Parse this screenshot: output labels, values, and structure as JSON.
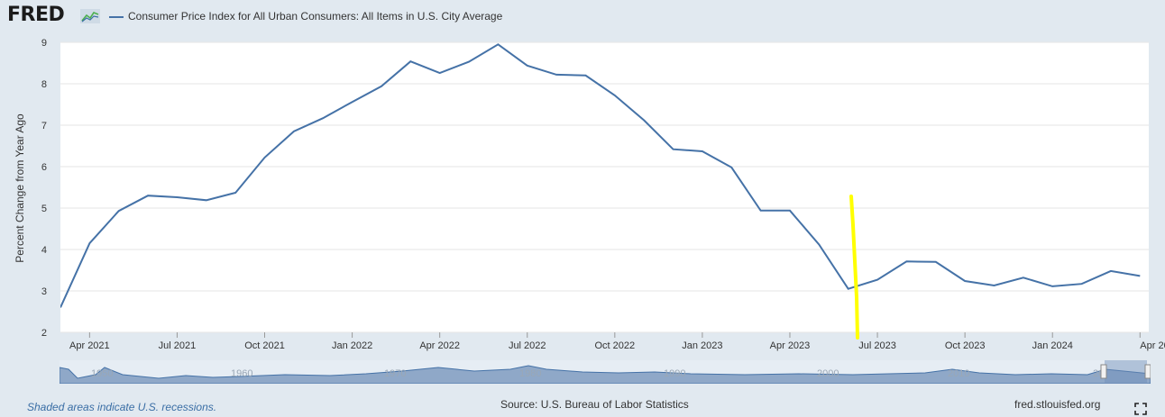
{
  "header": {
    "logo_text": "FRED",
    "series_title": "Consumer Price Index for All Urban Consumers: All Items in U.S. City Average"
  },
  "footer": {
    "recession_note": "Shaded areas indicate U.S. recessions.",
    "source": "Source: U.S. Bureau of Labor Statistics",
    "site": "fred.stlouisfed.org"
  },
  "navigator": {
    "year_labels": [
      "1950",
      "1960",
      "1970",
      "1980",
      "1990",
      "2000",
      "2010",
      "20"
    ]
  },
  "colors": {
    "line": "#4572a7",
    "highlight": "#ffff00",
    "background": "#e1e9f0",
    "plot": "#ffffff"
  },
  "chart_data": {
    "type": "line",
    "title": "",
    "xlabel": "",
    "ylabel": "Percent Change from Year Ago",
    "ylim": [
      2,
      9
    ],
    "y_ticks": [
      2,
      3,
      4,
      5,
      6,
      7,
      8,
      9
    ],
    "x_ticks": [
      "Apr 2021",
      "Jul 2021",
      "Oct 2021",
      "Jan 2022",
      "Apr 2022",
      "Jul 2022",
      "Oct 2022",
      "Jan 2023",
      "Apr 2023",
      "Jul 2023",
      "Oct 2023",
      "Jan 2024",
      "Apr 2024"
    ],
    "grid": true,
    "series": [
      {
        "name": "Consumer Price Index for All Urban Consumers: All Items in U.S. City Average",
        "x": [
          "2021-03",
          "2021-04",
          "2021-05",
          "2021-06",
          "2021-07",
          "2021-08",
          "2021-09",
          "2021-10",
          "2021-11",
          "2021-12",
          "2022-01",
          "2022-02",
          "2022-03",
          "2022-04",
          "2022-05",
          "2022-06",
          "2022-07",
          "2022-08",
          "2022-09",
          "2022-10",
          "2022-11",
          "2022-12",
          "2023-01",
          "2023-02",
          "2023-03",
          "2023-04",
          "2023-05",
          "2023-06",
          "2023-07",
          "2023-08",
          "2023-09",
          "2023-10",
          "2023-11",
          "2023-12",
          "2024-01",
          "2024-02",
          "2024-03",
          "2024-04"
        ],
        "values": [
          2.6,
          4.15,
          4.93,
          5.3,
          5.26,
          5.19,
          5.37,
          6.22,
          6.85,
          7.17,
          7.56,
          7.94,
          8.54,
          8.26,
          8.53,
          8.95,
          8.44,
          8.22,
          8.2,
          7.72,
          7.12,
          6.42,
          6.37,
          5.98,
          4.94,
          4.94,
          4.12,
          3.05,
          3.27,
          3.71,
          3.7,
          3.24,
          3.13,
          3.32,
          3.11,
          3.17,
          3.48,
          3.36
        ]
      }
    ]
  }
}
